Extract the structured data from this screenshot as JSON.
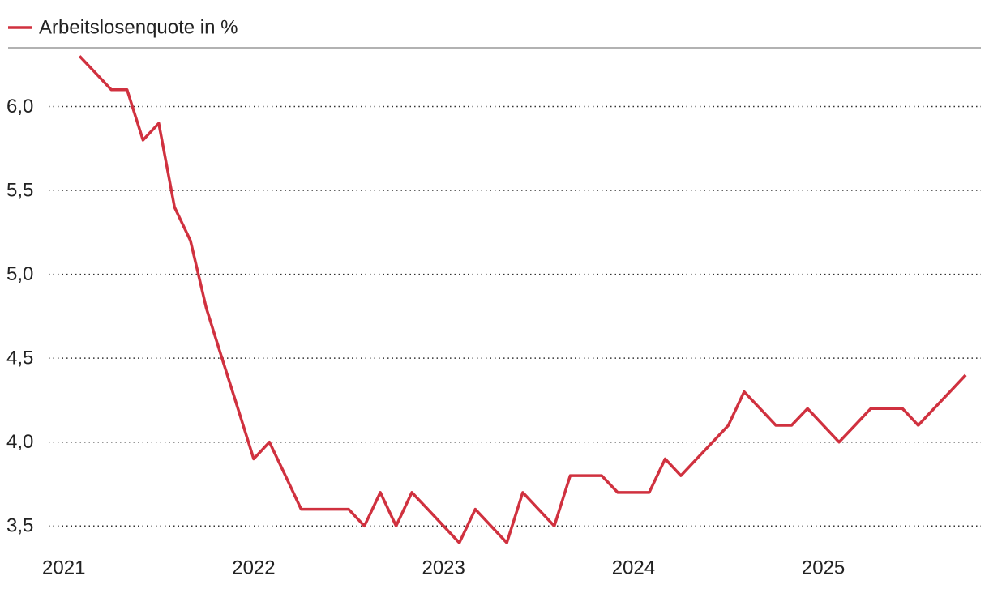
{
  "chart_data": {
    "type": "line",
    "x": [
      2021.083,
      2021.167,
      2021.25,
      2021.333,
      2021.417,
      2021.5,
      2021.583,
      2021.667,
      2021.75,
      2021.833,
      2021.917,
      2022,
      2022.083,
      2022.167,
      2022.25,
      2022.333,
      2022.417,
      2022.5,
      2022.583,
      2022.667,
      2022.75,
      2022.833,
      2022.917,
      2023,
      2023.083,
      2023.167,
      2023.25,
      2023.333,
      2023.417,
      2023.5,
      2023.583,
      2023.667,
      2023.75,
      2023.833,
      2023.917,
      2024,
      2024.083,
      2024.167,
      2024.25,
      2024.333,
      2024.417,
      2024.5,
      2024.583,
      2024.667,
      2024.75,
      2024.833,
      2024.917,
      2025,
      2025.083,
      2025.167,
      2025.25,
      2025.333,
      2025.417,
      2025.5,
      2025.583,
      2025.667,
      2025.75
    ],
    "series": [
      {
        "name": "Arbeitslosenquote in %",
        "color": "#d0313f",
        "values": [
          6.3,
          6.2,
          6.1,
          6.1,
          5.8,
          5.9,
          5.4,
          5.2,
          4.8,
          4.5,
          4.2,
          3.9,
          4.0,
          3.8,
          3.6,
          3.6,
          3.6,
          3.6,
          3.5,
          3.7,
          3.5,
          3.7,
          3.6,
          3.5,
          3.4,
          3.6,
          3.5,
          3.4,
          3.7,
          3.6,
          3.5,
          3.8,
          3.8,
          3.8,
          3.7,
          3.7,
          3.7,
          3.9,
          3.8,
          3.9,
          4.0,
          4.1,
          4.3,
          4.2,
          4.1,
          4.1,
          4.2,
          4.1,
          4.0,
          4.1,
          4.2,
          4.2,
          4.2,
          4.1,
          4.2,
          4.3,
          4.4
        ]
      }
    ],
    "xlim": [
      2020.92,
      2025.83
    ],
    "xticks": [
      2021,
      2022,
      2023,
      2024,
      2025
    ],
    "ylim": [
      3.4,
      6.35
    ],
    "yticks": [
      {
        "value": 3.5,
        "label": "3,5"
      },
      {
        "value": 4.0,
        "label": "4,0"
      },
      {
        "value": 4.5,
        "label": "4,5"
      },
      {
        "value": 5.0,
        "label": "5,0"
      },
      {
        "value": 5.5,
        "label": "5,5"
      },
      {
        "value": 6.0,
        "label": "6,0"
      }
    ],
    "grid": true
  }
}
